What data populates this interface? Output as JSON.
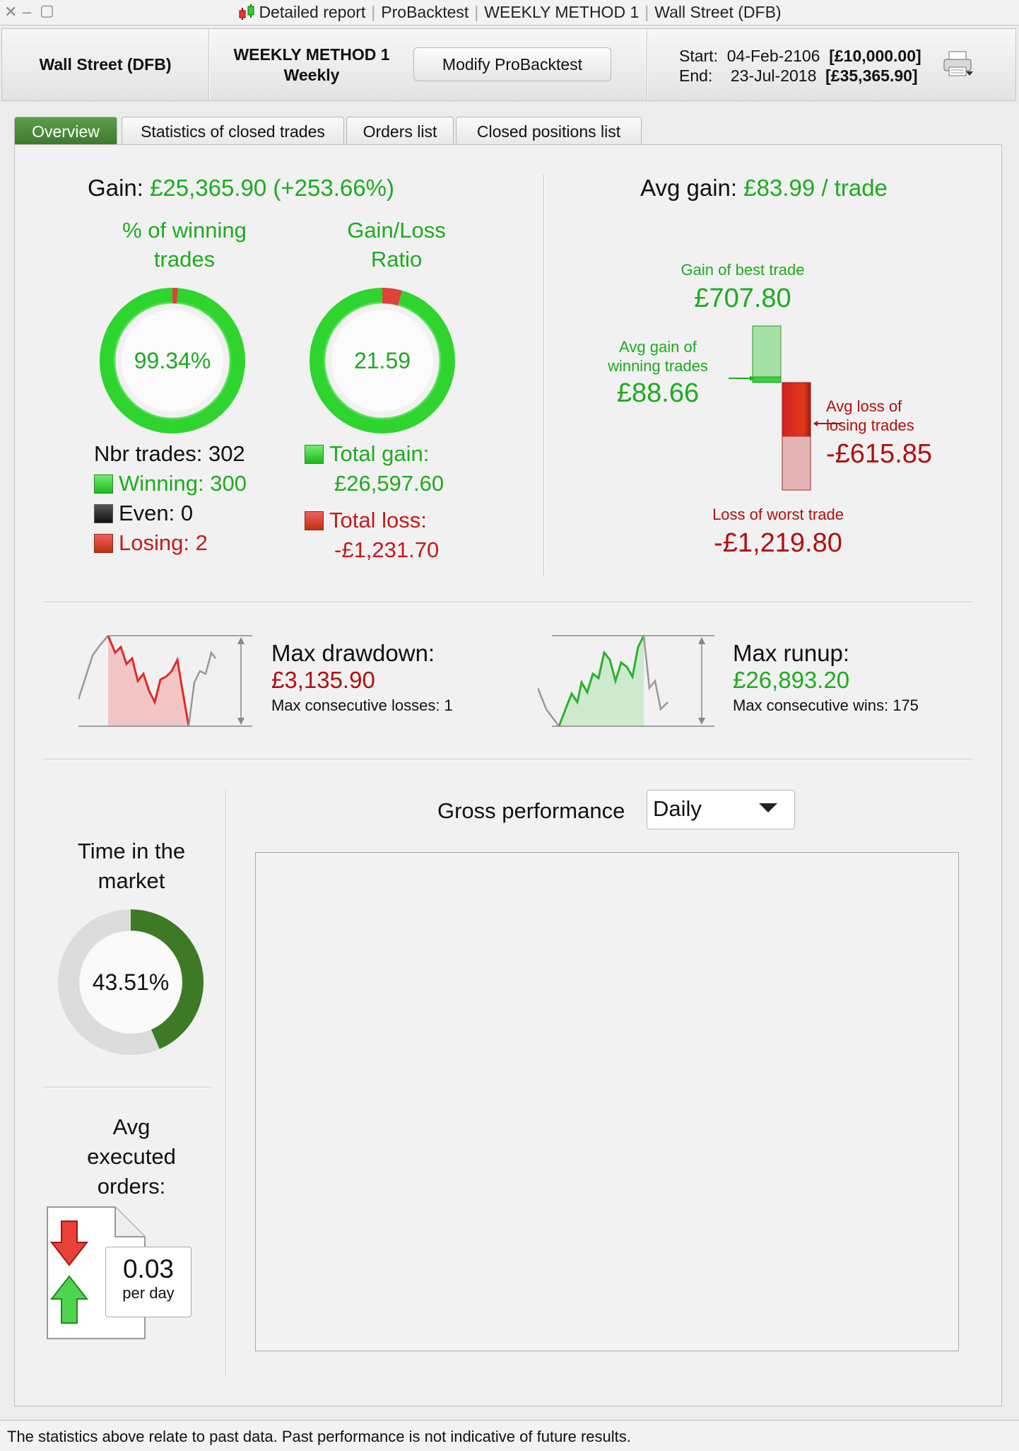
{
  "window": {
    "title_parts": [
      "Detailed report",
      "ProBacktest",
      "WEEKLY METHOD 1",
      "Wall Street (DFB)"
    ]
  },
  "header": {
    "market": "Wall Street (DFB)",
    "method_name": "WEEKLY METHOD 1",
    "timeframe": "Weekly",
    "modify_label": "Modify ProBacktest",
    "start_label": "Start:",
    "start_date": "04-Feb-2106",
    "start_value": "[£10,000.00]",
    "end_label": "End:",
    "end_date": "23-Jul-2018",
    "end_value": "[£35,365.90]"
  },
  "tabs": [
    {
      "label": "Overview",
      "active": true
    },
    {
      "label": "Statistics of closed trades",
      "active": false
    },
    {
      "label": "Orders list",
      "active": false
    },
    {
      "label": "Closed positions list",
      "active": false
    }
  ],
  "overview": {
    "gain_label": "Gain:",
    "gain_value": "£25,365.90 (+253.66%)",
    "winning_title_1": "% of winning",
    "winning_title_2": "trades",
    "winning_pct": "99.34%",
    "winning_fraction": 0.9934,
    "ratio_title_1": "Gain/Loss",
    "ratio_title_2": "Ratio",
    "ratio_value": "21.59",
    "ratio_loss_fraction": 0.044,
    "nbr_trades": "Nbr trades: 302",
    "winning": "Winning: 300",
    "even": "Even: 0",
    "losing": "Losing: 2",
    "total_gain_label": "Total gain:",
    "total_gain_value": "£26,597.60",
    "total_loss_label": "Total loss:",
    "total_loss_value": "-£1,231.70",
    "avg_gain_label": "Avg gain:",
    "avg_gain_value": "£83.99 / trade",
    "best_trade_label": "Gain of best trade",
    "best_trade_value": "£707.80",
    "avg_win_label_1": "Avg gain of",
    "avg_win_label_2": "winning trades",
    "avg_win_value": "£88.66",
    "avg_loss_label_1": "Avg loss of",
    "avg_loss_label_2": "losing trades",
    "avg_loss_value": "-£615.85",
    "worst_trade_label": "Loss of worst trade",
    "worst_trade_value": "-£1,219.80"
  },
  "drawdown": {
    "label": "Max drawdown:",
    "value": "£3,135.90",
    "consec_label": "Max consecutive losses: 1"
  },
  "runup": {
    "label": "Max runup:",
    "value": "£26,893.20",
    "consec_label": "Max consecutive wins: 175"
  },
  "time_in_market": {
    "title_1": "Time in the",
    "title_2": "market",
    "value": "43.51%",
    "fraction": 0.4351
  },
  "avg_orders": {
    "title_1": "Avg",
    "title_2": "executed",
    "title_3": "orders:",
    "value": "0.03",
    "unit": "per day"
  },
  "gross_performance": {
    "label": "Gross performance",
    "selected": "Daily"
  },
  "footer": {
    "disclaimer": "The statistics above relate to past data. Past performance is not indicative of future results."
  },
  "colors": {
    "gain": "#1faa1f",
    "loss": "#b01010",
    "tab_active": "#3b7a2c",
    "market_ring": "#3e7a26"
  }
}
